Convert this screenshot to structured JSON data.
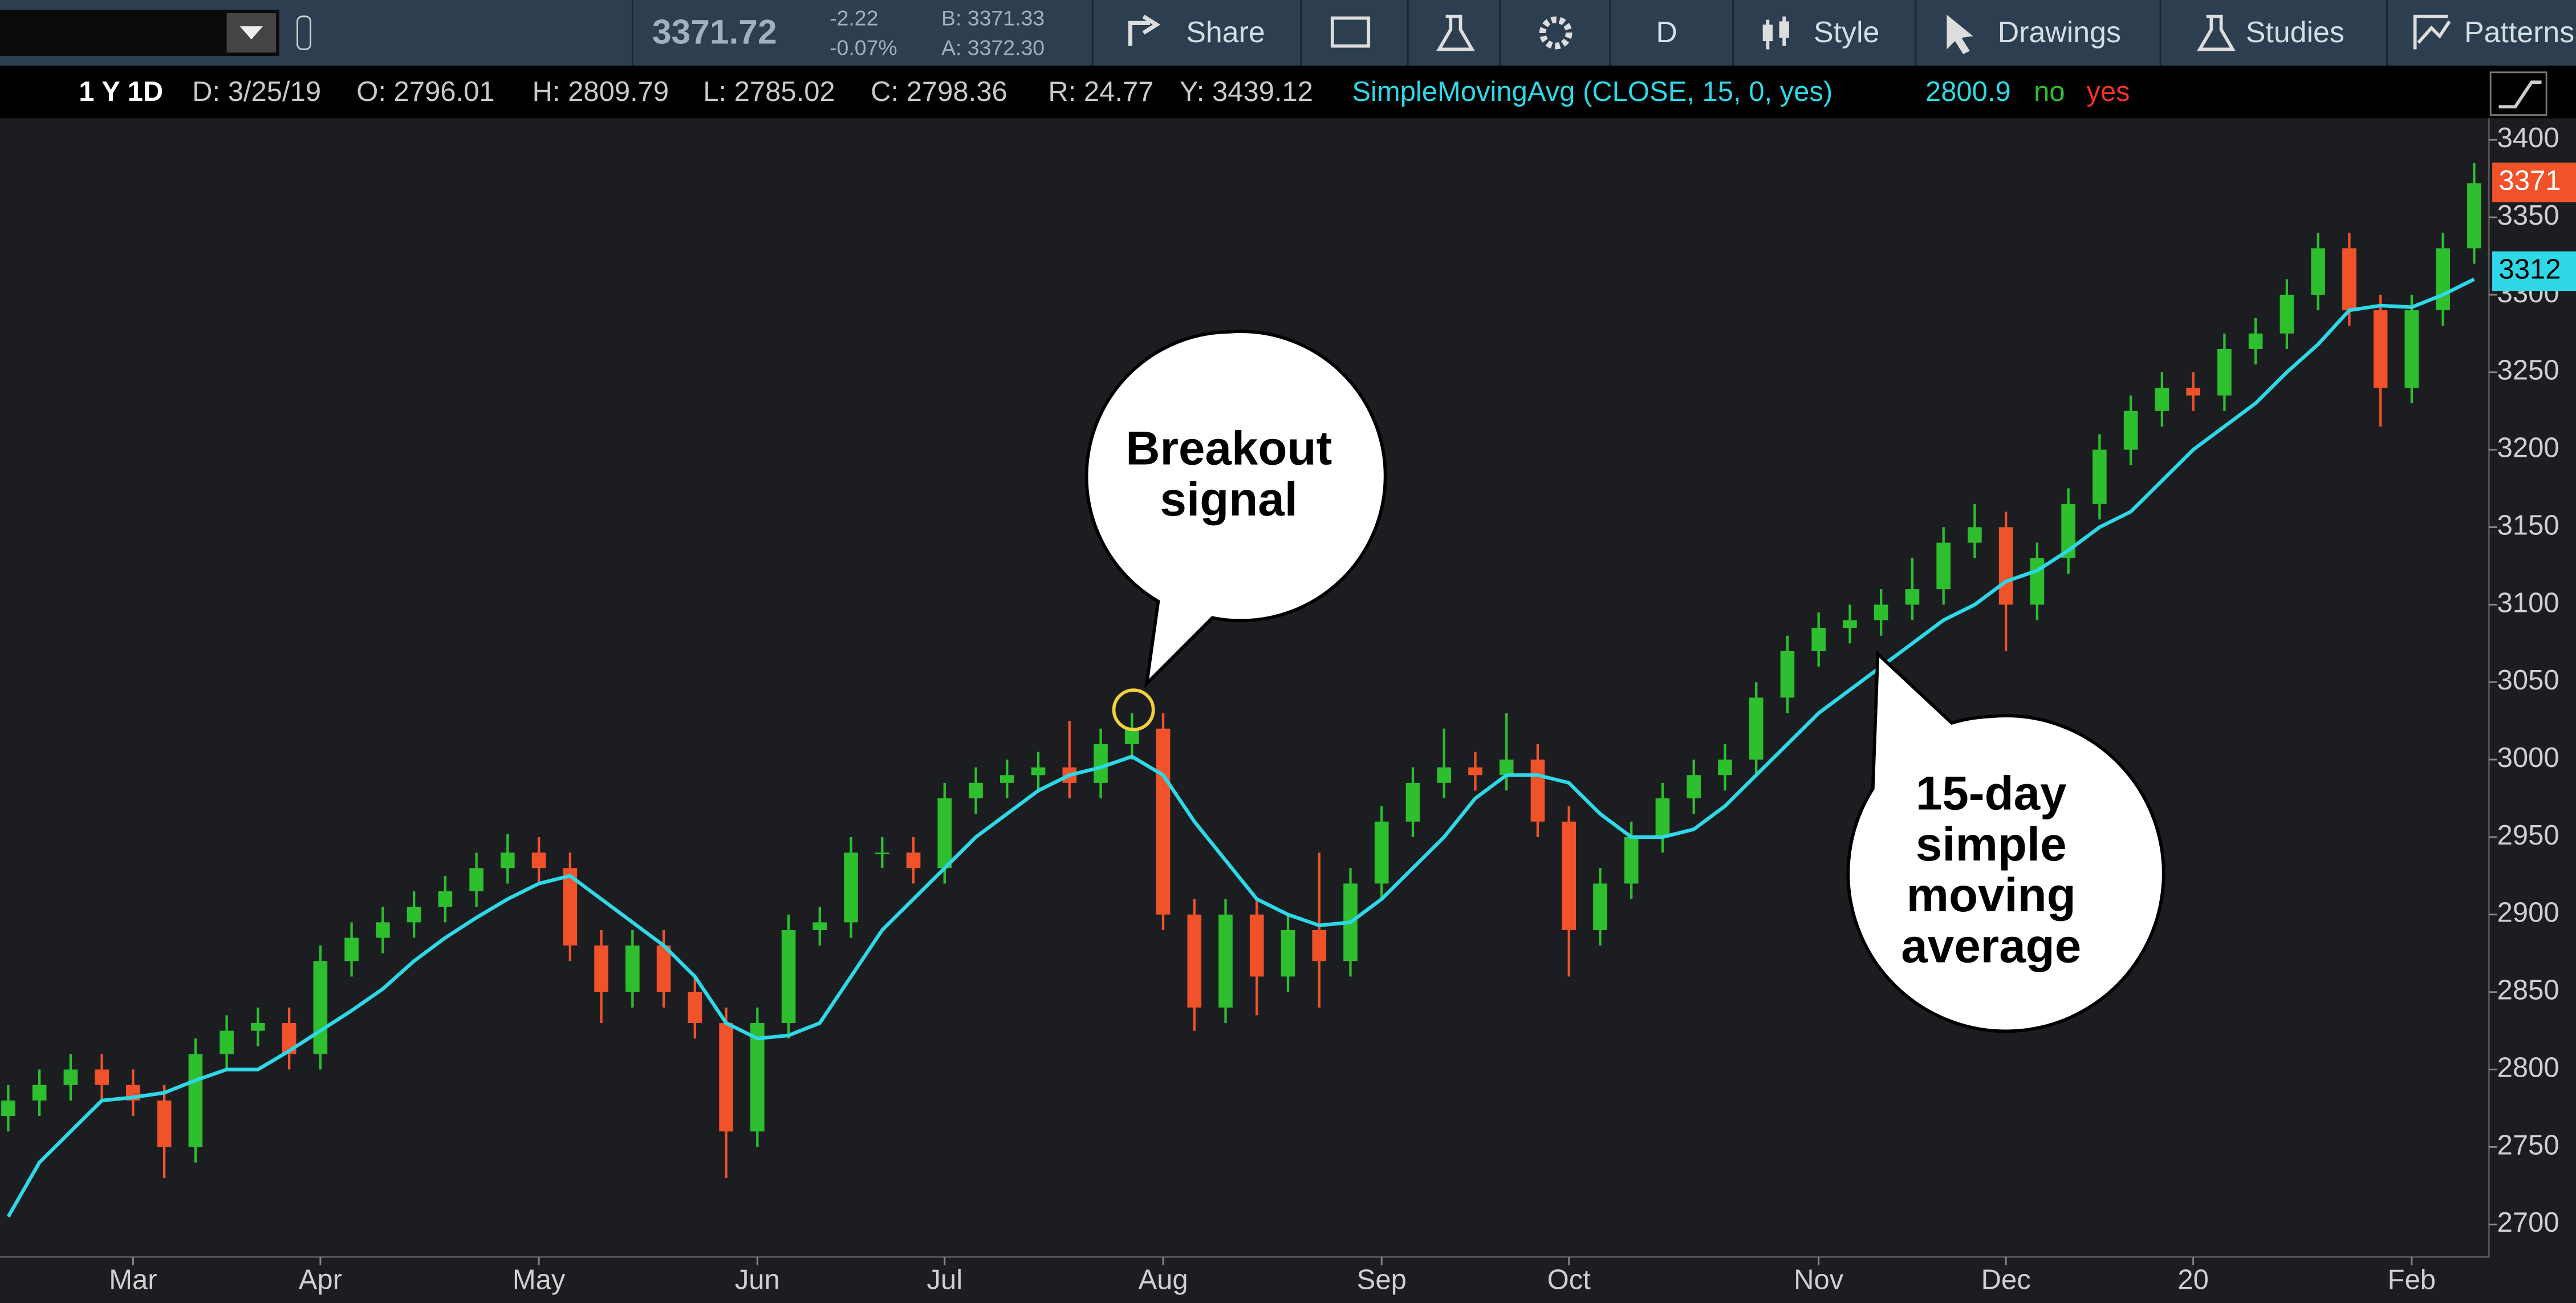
{
  "toolbar": {
    "last": "3371.72",
    "change": "-2.22",
    "change_pct": "-0.07%",
    "bid": "B: 3371.33",
    "ask": "A: 3372.30",
    "buttons": [
      "Share",
      "D",
      "Style",
      "Drawings",
      "Studies",
      "Patterns"
    ]
  },
  "info_bar": {
    "period": "1 Y 1D",
    "items": [
      "D: 3/25/19",
      "O: 2796.01",
      "H: 2809.79",
      "L: 2785.02",
      "C: 2798.36",
      "R: 24.77",
      "Y: 3439.12"
    ],
    "study": "SimpleMovingAvg (CLOSE, 15, 0, yes)",
    "study_value": "2800.9",
    "no": "no",
    "yes": "yes"
  },
  "price_tags": [
    "3371",
    "3312"
  ],
  "annotations": [
    [
      "Breakout",
      "signal"
    ],
    [
      "15-day",
      "simple",
      "moving",
      "average"
    ]
  ],
  "chart_data": {
    "type": "candlestick",
    "categories": [
      null,
      null,
      null,
      null,
      "Mar",
      null,
      null,
      null,
      null,
      null,
      "Apr",
      null,
      null,
      null,
      null,
      null,
      null,
      "May",
      null,
      null,
      null,
      null,
      null,
      null,
      "Jun",
      null,
      null,
      null,
      null,
      null,
      "Jul",
      null,
      null,
      null,
      null,
      null,
      null,
      "Aug",
      null,
      null,
      null,
      null,
      null,
      null,
      "Sep",
      null,
      null,
      null,
      null,
      null,
      "Oct",
      null,
      null,
      null,
      null,
      null,
      null,
      null,
      "Nov",
      null,
      null,
      null,
      null,
      null,
      "Dec",
      null,
      null,
      null,
      null,
      null,
      "20",
      null,
      null,
      null,
      null,
      null,
      null,
      "Feb",
      null,
      null
    ],
    "open": [
      2770,
      2780,
      2790,
      2800,
      2790,
      2780,
      2750,
      2810,
      2825,
      2830,
      2810,
      2870,
      2885,
      2895,
      2905,
      2915,
      2930,
      2940,
      2930,
      2880,
      2850,
      2880,
      2850,
      2830,
      2760,
      2830,
      2890,
      2895,
      2940,
      2940,
      2930,
      2975,
      2985,
      2990,
      2995,
      2985,
      3010,
      3020,
      2900,
      2840,
      2900,
      2860,
      2890,
      2870,
      2920,
      2960,
      2985,
      2995,
      2990,
      3000,
      2960,
      2890,
      2920,
      2950,
      2975,
      2990,
      3000,
      3040,
      3070,
      3085,
      3090,
      3100,
      3110,
      3140,
      3150,
      3100,
      3130,
      3165,
      3200,
      3225,
      3240,
      3235,
      3265,
      3275,
      3300,
      3330,
      3290,
      3240,
      3290,
      3330
    ],
    "high": [
      2790,
      2800,
      2810,
      2810,
      2800,
      2790,
      2820,
      2835,
      2840,
      2840,
      2880,
      2895,
      2905,
      2915,
      2925,
      2940,
      2952,
      2950,
      2940,
      2890,
      2890,
      2890,
      2860,
      2840,
      2840,
      2900,
      2905,
      2950,
      2950,
      2950,
      2985,
      2995,
      3000,
      3005,
      3025,
      3020,
      3030,
      3030,
      2910,
      2910,
      2910,
      2900,
      2940,
      2930,
      2970,
      2995,
      3020,
      3005,
      3030,
      3010,
      2970,
      2930,
      2960,
      2985,
      3000,
      3010,
      3050,
      3080,
      3095,
      3100,
      3110,
      3130,
      3150,
      3165,
      3160,
      3140,
      3175,
      3210,
      3235,
      3250,
      3250,
      3275,
      3285,
      3310,
      3340,
      3340,
      3300,
      3300,
      3340,
      3385
    ],
    "low": [
      2760,
      2770,
      2780,
      2780,
      2770,
      2730,
      2740,
      2800,
      2815,
      2800,
      2800,
      2860,
      2875,
      2885,
      2895,
      2905,
      2920,
      2920,
      2870,
      2830,
      2840,
      2840,
      2820,
      2730,
      2750,
      2820,
      2880,
      2885,
      2930,
      2920,
      2920,
      2965,
      2975,
      2980,
      2975,
      2975,
      3000,
      2890,
      2825,
      2830,
      2835,
      2850,
      2840,
      2860,
      2910,
      2950,
      2975,
      2980,
      2980,
      2950,
      2860,
      2880,
      2910,
      2940,
      2965,
      2980,
      2990,
      3030,
      3060,
      3075,
      3080,
      3090,
      3100,
      3130,
      3070,
      3090,
      3120,
      3155,
      3190,
      3215,
      3225,
      3225,
      3255,
      3265,
      3290,
      3280,
      3215,
      3230,
      3280,
      3320
    ],
    "close": [
      2780,
      2790,
      2800,
      2790,
      2780,
      2750,
      2810,
      2825,
      2830,
      2810,
      2870,
      2885,
      2895,
      2905,
      2915,
      2930,
      2940,
      2930,
      2880,
      2850,
      2880,
      2850,
      2830,
      2760,
      2830,
      2890,
      2895,
      2940,
      2940,
      2930,
      2975,
      2985,
      2990,
      2995,
      2985,
      3010,
      3020,
      2900,
      2840,
      2900,
      2860,
      2890,
      2870,
      2920,
      2960,
      2985,
      2995,
      2990,
      3000,
      2960,
      2890,
      2920,
      2950,
      2975,
      2990,
      3000,
      3040,
      3070,
      3085,
      3090,
      3100,
      3110,
      3140,
      3150,
      3100,
      3130,
      3165,
      3200,
      3225,
      3240,
      3235,
      3265,
      3275,
      3300,
      3330,
      3290,
      3240,
      3290,
      3330,
      3372
    ],
    "up_color": "#2dbf2d",
    "down_color": "#f0522a",
    "sma": {
      "color": "#2fd8e6",
      "values": [
        2705,
        2740,
        2760,
        2780,
        2782,
        2785,
        2793,
        2800,
        2800,
        2812,
        2825,
        2838,
        2852,
        2870,
        2885,
        2898,
        2910,
        2920,
        2925,
        2910,
        2895,
        2880,
        2860,
        2830,
        2820,
        2822,
        2830,
        2860,
        2890,
        2910,
        2930,
        2950,
        2965,
        2980,
        2990,
        2995,
        3002,
        2990,
        2960,
        2935,
        2910,
        2900,
        2893,
        2895,
        2910,
        2930,
        2950,
        2975,
        2990,
        2990,
        2985,
        2965,
        2950,
        2950,
        2955,
        2970,
        2990,
        3010,
        3030,
        3045,
        3060,
        3075,
        3090,
        3100,
        3115,
        3122,
        3135,
        3150,
        3160,
        3180,
        3200,
        3215,
        3230,
        3250,
        3268,
        3290,
        3293,
        3292,
        3300,
        3310
      ]
    },
    "ylim": [
      2679,
      3416
    ],
    "yticks": [
      2700,
      2750,
      2800,
      2850,
      2900,
      2950,
      3000,
      3050,
      3100,
      3150,
      3200,
      3250,
      3300,
      3350,
      3400
    ],
    "grid": false
  }
}
